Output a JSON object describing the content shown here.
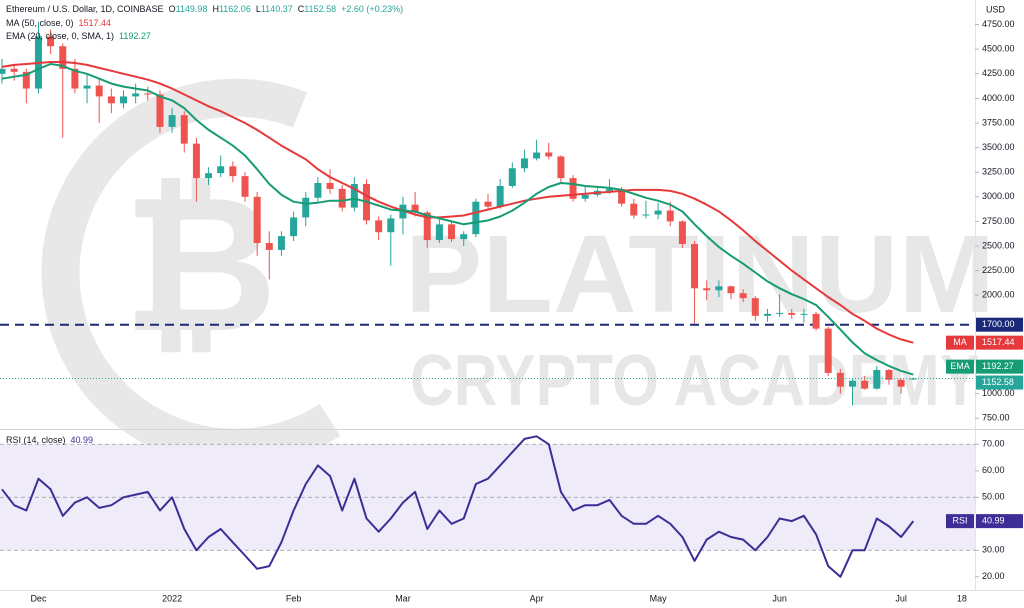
{
  "watermark": {
    "symbol": "₿",
    "line1": "PLATINUM",
    "line2": "CRYPTO ACADEMY"
  },
  "chart_data": [
    {
      "type": "candlestick",
      "title": "Ethereum / U.S. Dollar, 1D, COINBASE",
      "ohlc_labels": [
        "O",
        "H",
        "L",
        "C"
      ],
      "change": "+2.60 (+0.23%)",
      "axis_label": "USD",
      "categories": [
        null,
        null,
        null,
        "Dec",
        null,
        null,
        null,
        null,
        null,
        null,
        null,
        null,
        null,
        null,
        "2022",
        null,
        null,
        null,
        null,
        null,
        null,
        null,
        null,
        null,
        "Feb",
        null,
        null,
        null,
        null,
        null,
        null,
        null,
        null,
        "Mar",
        null,
        null,
        null,
        null,
        null,
        null,
        null,
        null,
        null,
        null,
        "Apr",
        null,
        null,
        null,
        null,
        null,
        null,
        null,
        null,
        null,
        "May",
        null,
        null,
        null,
        null,
        null,
        null,
        null,
        null,
        null,
        "Jun",
        null,
        null,
        null,
        null,
        null,
        null,
        null,
        null,
        null,
        "Jul",
        null,
        null,
        null,
        null,
        "18"
      ],
      "open": [
        4250,
        4300,
        4270,
        4100,
        4630,
        4530,
        4300,
        4100,
        4130,
        4020,
        3950,
        4020,
        4050,
        4040,
        3710,
        3830,
        3540,
        3190,
        3240,
        3310,
        3210,
        3000,
        2530,
        2460,
        2600,
        2790,
        2990,
        3140,
        3080,
        2890,
        3130,
        2760,
        2640,
        2780,
        2920,
        2840,
        2560,
        2720,
        2570,
        2620,
        2950,
        2900,
        3110,
        3290,
        3390,
        3450,
        3410,
        3190,
        2980,
        3020,
        3060,
        3080,
        2930,
        2810,
        2820,
        2860,
        2750,
        2520,
        2070,
        2050,
        2090,
        2020,
        1970,
        1790,
        1810,
        1820,
        1800,
        1810,
        1660,
        1210,
        1070,
        1130,
        1050,
        1240,
        1140,
        1149.98,
        null,
        null,
        null,
        null
      ],
      "high": [
        4400,
        4350,
        4300,
        4780,
        4700,
        4560,
        4400,
        4250,
        4200,
        4100,
        4080,
        4150,
        4120,
        4080,
        3900,
        3870,
        3600,
        3300,
        3420,
        3360,
        3250,
        3050,
        2650,
        2650,
        2850,
        3050,
        3200,
        3280,
        3120,
        3200,
        3180,
        2800,
        2820,
        3000,
        3050,
        2860,
        2780,
        2740,
        2650,
        2980,
        3030,
        3180,
        3350,
        3480,
        3580,
        3550,
        3420,
        3220,
        3100,
        3100,
        3180,
        3100,
        2980,
        2960,
        2940,
        2950,
        2760,
        2550,
        2150,
        2150,
        2100,
        2060,
        1990,
        1860,
        2010,
        1860,
        1860,
        1830,
        1680,
        1250,
        1150,
        1180,
        1280,
        1250,
        1150,
        1162.06,
        null,
        null,
        null,
        null
      ],
      "low": [
        4150,
        4180,
        3950,
        4050,
        4450,
        3600,
        4050,
        3950,
        3750,
        3850,
        3900,
        3950,
        3980,
        3650,
        3650,
        3450,
        2950,
        3120,
        3200,
        3150,
        2950,
        2400,
        2160,
        2400,
        2550,
        2700,
        2950,
        3030,
        2850,
        2850,
        2720,
        2560,
        2300,
        2620,
        2800,
        2480,
        2530,
        2540,
        2500,
        2590,
        2870,
        2880,
        3090,
        3250,
        3370,
        3380,
        3150,
        2950,
        2950,
        3000,
        3030,
        2900,
        2780,
        2780,
        2770,
        2700,
        2480,
        1710,
        1950,
        1980,
        1960,
        1930,
        1740,
        1730,
        1780,
        1760,
        1720,
        1640,
        1180,
        1000,
        880,
        1040,
        1040,
        1090,
        1000,
        1140.37,
        null,
        null,
        null,
        null
      ],
      "close": [
        4300,
        4270,
        4100,
        4630,
        4530,
        4300,
        4100,
        4130,
        4020,
        3950,
        4020,
        4050,
        4040,
        3710,
        3830,
        3540,
        3190,
        3240,
        3310,
        3210,
        3000,
        2530,
        2460,
        2600,
        2790,
        2990,
        3140,
        3080,
        2890,
        3130,
        2760,
        2640,
        2780,
        2920,
        2840,
        2560,
        2720,
        2570,
        2620,
        2950,
        2900,
        3110,
        3290,
        3390,
        3450,
        3410,
        3190,
        2980,
        3020,
        3060,
        3080,
        2930,
        2810,
        2820,
        2860,
        2750,
        2520,
        2070,
        2050,
        2090,
        2020,
        1970,
        1790,
        1810,
        1820,
        1800,
        1810,
        1660,
        1210,
        1070,
        1130,
        1050,
        1240,
        1140,
        1070,
        1152.58,
        null,
        null,
        null,
        null
      ],
      "up_color": "#26a69a",
      "down_color": "#ef5350",
      "series": [
        {
          "name": "MA (50, close, 0)",
          "short_name": "MA",
          "color": "#e5393b",
          "values": [
            4320,
            4340,
            4350,
            4360,
            4370,
            4370,
            4360,
            4340,
            4310,
            4280,
            4250,
            4220,
            4190,
            4150,
            4100,
            4040,
            3980,
            3920,
            3870,
            3810,
            3750,
            3680,
            3600,
            3520,
            3450,
            3380,
            3280,
            3200,
            3140,
            3080,
            3010,
            2950,
            2900,
            2860,
            2820,
            2790,
            2790,
            2800,
            2810,
            2840,
            2870,
            2900,
            2930,
            2960,
            2980,
            3000,
            3010,
            3020,
            3030,
            3040,
            3050,
            3060,
            3070,
            3070,
            3070,
            3060,
            3030,
            2980,
            2920,
            2850,
            2760,
            2660,
            2550,
            2450,
            2350,
            2250,
            2160,
            2070,
            1980,
            1900,
            1810,
            1740,
            1660,
            1600,
            1550,
            1517.44,
            null,
            null,
            null,
            null
          ]
        },
        {
          "name": "EMA (20, close, 0, SMA, 1)",
          "short_name": "EMA",
          "color": "#169c72",
          "values": [
            4200,
            4220,
            4240,
            4300,
            4350,
            4330,
            4280,
            4250,
            4200,
            4150,
            4120,
            4100,
            4080,
            4020,
            3980,
            3900,
            3780,
            3680,
            3600,
            3520,
            3420,
            3280,
            3130,
            3020,
            2950,
            2930,
            2940,
            2960,
            2960,
            2980,
            2950,
            2910,
            2870,
            2860,
            2850,
            2810,
            2780,
            2750,
            2720,
            2740,
            2760,
            2800,
            2860,
            2940,
            3030,
            3100,
            3140,
            3130,
            3110,
            3100,
            3090,
            3070,
            3030,
            2990,
            2960,
            2920,
            2850,
            2720,
            2600,
            2490,
            2400,
            2320,
            2230,
            2140,
            2070,
            2010,
            1960,
            1900,
            1780,
            1650,
            1520,
            1410,
            1340,
            1280,
            1230,
            1192.27,
            null,
            null,
            null,
            null
          ]
        }
      ],
      "hline": {
        "value": 1700,
        "label": "1700.00",
        "color": "#1b2a78"
      },
      "ylim": [
        650,
        5000
      ],
      "yticks": [
        {
          "value": 750,
          "label": "750.00"
        },
        {
          "value": 1000,
          "label": "1000.00"
        },
        {
          "value": 2000,
          "label": "2000.00"
        },
        {
          "value": 2250,
          "label": "2250.00"
        },
        {
          "value": 2500,
          "label": "2500.00"
        },
        {
          "value": 2750,
          "label": "2750.00"
        },
        {
          "value": 3000,
          "label": "3000.00"
        },
        {
          "value": 3250,
          "label": "3250.00"
        },
        {
          "value": 3500,
          "label": "3500.00"
        },
        {
          "value": 3750,
          "label": "3750.00"
        },
        {
          "value": 4000,
          "label": "4000.00"
        },
        {
          "value": 4250,
          "label": "4250.00"
        },
        {
          "value": 4500,
          "label": "4500.00"
        },
        {
          "value": 4750,
          "label": "4750.00"
        }
      ],
      "grid": false
    },
    {
      "type": "line",
      "series": [
        {
          "name": "RSI (14, close)",
          "short_name": "RSI",
          "color": "#3c2e96",
          "values": [
            53,
            47,
            45,
            57,
            53,
            43,
            48,
            50,
            46,
            47,
            50,
            51,
            52,
            45,
            50,
            38,
            30,
            35,
            38,
            33,
            28,
            23,
            24,
            33,
            45,
            55,
            62,
            58,
            45,
            57,
            42,
            37,
            42,
            48,
            52,
            38,
            45,
            40,
            42,
            55,
            57,
            62,
            67,
            72,
            73,
            70,
            52,
            45,
            47,
            47,
            49,
            43,
            40,
            40,
            43,
            40,
            35,
            26,
            34,
            37,
            35,
            34,
            30,
            35,
            42,
            41,
            43,
            36,
            24,
            20,
            30,
            30,
            42,
            39,
            35,
            40.99,
            null,
            null,
            null,
            null
          ]
        }
      ],
      "band": [
        30,
        70
      ],
      "band_color": "#efebf9",
      "levels": [
        70,
        50,
        30
      ],
      "ylim": [
        15,
        75
      ],
      "yticks": [
        {
          "value": 20,
          "label": "20.00"
        },
        {
          "value": 30,
          "label": "30.00"
        },
        {
          "value": 50,
          "label": "50.00"
        },
        {
          "value": 60,
          "label": "60.00"
        },
        {
          "value": 70,
          "label": "70.00"
        }
      ],
      "grid": false
    }
  ]
}
